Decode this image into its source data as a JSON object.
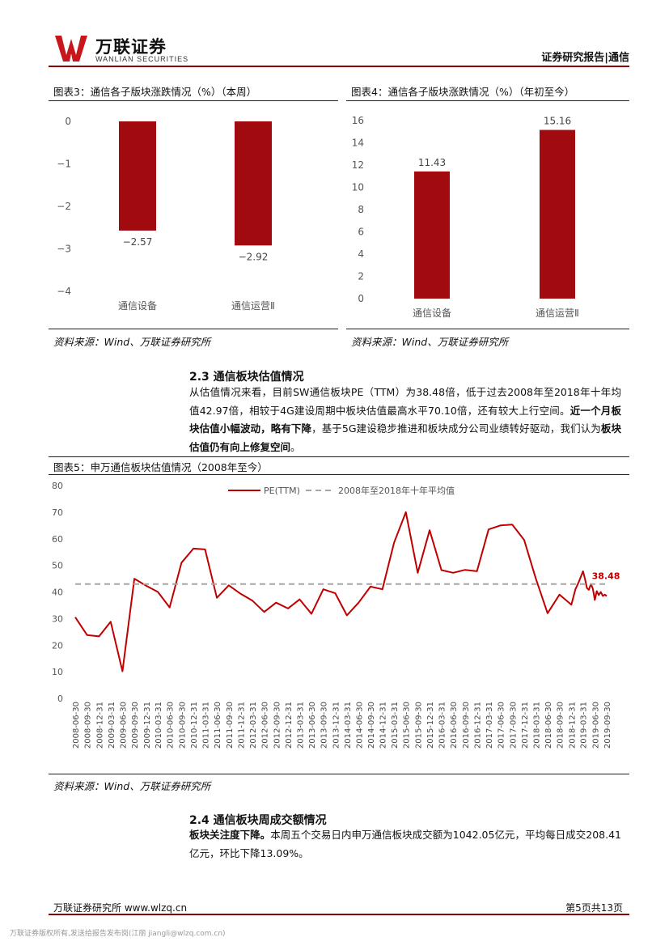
{
  "header": {
    "logo_cn": "万联证券",
    "logo_en": "WANLIAN SECURITIES",
    "report_type": "证券研究报告|通信"
  },
  "figure3": {
    "title": "图表3：通信各子版块涨跌情况（%）（本周）",
    "source": "资料来源：Wind、万联证券研究所"
  },
  "figure4": {
    "title": "图表4：通信各子版块涨跌情况（%）（年初至今）",
    "source": "资料来源：Wind、万联证券研究所"
  },
  "section23": {
    "title": "2.3 通信板块估值情况",
    "p_pre": "从估值情况来看，目前SW通信板块PE（TTM）为38.48倍，低于过去2008年至2018年十年均值42.97倍，相较于4G建设周期中板块估值最高水平70.10倍，还有较大上行空间。",
    "p_bold1": "近一个月板块估值小幅波动，略有下降",
    "p_mid": "，基于5G建设稳步推进和板块成分公司业绩转好驱动，我们认为",
    "p_bold2": "板块估值仍有向上修复空间",
    "p_end": "。"
  },
  "figure5": {
    "title": "图表5：申万通信板块估值情况（2008年至今）",
    "source": "资料来源：Wind、万联证券研究所"
  },
  "section24": {
    "title": "2.4 通信板块周成交额情况",
    "p_bold": "板块关注度下降。",
    "p_rest": "本周五个交易日内申万通信板块成交额为1042.05亿元，平均每日成交208.41亿元，环比下降13.09%。"
  },
  "footer": {
    "left": "万联证券研究所 www.wlzq.cn",
    "right": "第5页共13页",
    "watermark": "万联证券版权所有,发送给报告发布岗(江丽 jiangli@wlzq.com.cn)"
  },
  "chart_data": [
    {
      "type": "bar",
      "categories": [
        "通信设备",
        "通信运营Ⅱ"
      ],
      "values": [
        -2.57,
        -2.92
      ],
      "value_labels": [
        "-2.57",
        "-2.92"
      ],
      "ylim": [
        -4,
        0
      ],
      "yticks": [
        "0",
        "-1",
        "-2",
        "-3",
        "-4"
      ],
      "color": "#a10a0f"
    },
    {
      "type": "bar",
      "categories": [
        "通信设备",
        "通信运营Ⅱ"
      ],
      "values": [
        11.43,
        15.16
      ],
      "value_labels": [
        "11.43",
        "15.16"
      ],
      "ylim": [
        0,
        16
      ],
      "yticks": [
        "0",
        "2",
        "4",
        "6",
        "8",
        "10",
        "12",
        "14",
        "16"
      ],
      "color": "#a10a0f"
    },
    {
      "type": "line",
      "ylim": [
        0,
        80
      ],
      "yticks": [
        "0",
        "10",
        "20",
        "30",
        "40",
        "50",
        "60",
        "70",
        "80"
      ],
      "xticks": [
        "2008-06-30",
        "2008-09-30",
        "2008-12-31",
        "2009-03-31",
        "2009-06-30",
        "2009-09-30",
        "2009-12-31",
        "2010-03-31",
        "2010-06-30",
        "2010-09-30",
        "2010-12-31",
        "2011-03-31",
        "2011-06-30",
        "2011-09-30",
        "2011-12-31",
        "2012-03-31",
        "2012-06-30",
        "2012-09-30",
        "2012-12-31",
        "2013-03-31",
        "2013-06-30",
        "2013-09-30",
        "2013-12-31",
        "2014-03-31",
        "2014-06-30",
        "2014-09-30",
        "2014-12-31",
        "2015-03-31",
        "2015-06-30",
        "2015-09-30",
        "2015-12-31",
        "2016-03-31",
        "2016-06-30",
        "2016-09-30",
        "2016-12-31",
        "2017-03-31",
        "2017-06-30",
        "2017-09-30",
        "2017-12-31",
        "2018-03-31",
        "2018-06-30",
        "2018-09-30",
        "2018-12-31",
        "2019-03-31",
        "2019-06-30",
        "2019-09-30"
      ],
      "series": [
        {
          "name": "PE(TTM)",
          "color": "#c00000",
          "x": [
            "2008-06-30",
            "2008-09-30",
            "2008-12-31",
            "2009-03-31",
            "2009-06-30",
            "2009-09-30",
            "2009-12-31",
            "2010-03-31",
            "2010-06-30",
            "2010-09-30",
            "2010-12-31",
            "2011-03-31",
            "2011-06-30",
            "2011-09-30",
            "2011-12-31",
            "2012-03-31",
            "2012-06-30",
            "2012-09-30",
            "2012-12-31",
            "2013-03-31",
            "2013-06-30",
            "2013-09-30",
            "2013-12-31",
            "2014-03-31",
            "2014-06-30",
            "2014-09-30",
            "2014-12-31",
            "2015-03-31",
            "2015-06-30",
            "2015-09-30",
            "2015-12-31",
            "2016-03-31",
            "2016-06-30",
            "2016-09-30",
            "2016-12-31",
            "2017-03-31",
            "2017-06-30",
            "2017-09-30",
            "2017-12-31",
            "2018-03-31",
            "2018-06-30",
            "2018-09-30",
            "2018-12-31",
            "2019-01-31",
            "2019-02-28",
            "2019-03-31",
            "2019-04-15",
            "2019-04-30",
            "2019-05-15",
            "2019-05-31",
            "2019-06-15",
            "2019-06-30",
            "2019-07-15",
            "2019-07-31",
            "2019-08-15",
            "2019-08-31",
            "2019-09-15",
            "2019-09-30"
          ],
          "values": [
            30.5,
            23.8,
            23.3,
            28.8,
            10.2,
            45.0,
            42.3,
            40.0,
            34.2,
            51.0,
            56.3,
            56.0,
            37.8,
            42.5,
            39.3,
            36.7,
            32.5,
            36.0,
            33.8,
            37.2,
            31.8,
            41.0,
            39.5,
            31.2,
            36.0,
            42.0,
            41.0,
            58.5,
            70.0,
            47.2,
            63.2,
            48.2,
            47.2,
            48.3,
            47.8,
            63.5,
            65.0,
            65.3,
            59.5,
            45.0,
            32.0,
            39.0,
            35.2,
            41.0,
            44.0,
            47.8,
            45.0,
            41.5,
            40.8,
            43.0,
            41.2,
            37.0,
            40.3,
            38.8,
            40.0,
            38.5,
            39.0,
            38.48
          ]
        },
        {
          "name": "2008年至2018年十年平均值",
          "color": "#a6a6a6",
          "value": 42.97
        }
      ],
      "annotation": "38.48"
    }
  ]
}
